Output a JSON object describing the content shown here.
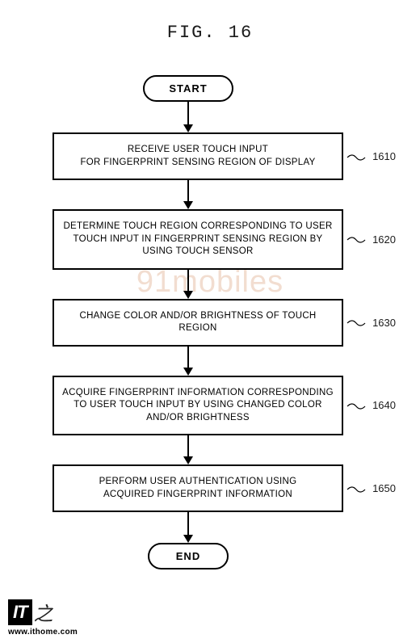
{
  "figure_label": "FIG. 16",
  "watermark_text": "91mobiles",
  "flowchart": {
    "type": "flowchart",
    "start_label": "START",
    "end_label": "END",
    "arrow_color": "#000000",
    "box_border_color": "#000000",
    "background_color": "#ffffff",
    "font_family": "Arial",
    "steps": [
      {
        "text": "RECEIVE USER TOUCH INPUT\nFOR FINGERPRINT SENSING REGION OF DISPLAY",
        "ref": "1610",
        "arrow_before_len": 28
      },
      {
        "text": "DETERMINE TOUCH REGION CORRESPONDING TO USER TOUCH INPUT IN FINGERPRINT SENSING REGION BY USING TOUCH SENSOR",
        "ref": "1620",
        "arrow_before_len": 26
      },
      {
        "text": "CHANGE COLOR AND/OR BRIGHTNESS OF TOUCH REGION",
        "ref": "1630",
        "arrow_before_len": 26
      },
      {
        "text": "ACQUIRE FINGERPRINT INFORMATION CORRESPONDING TO USER TOUCH INPUT BY USING CHANGED COLOR AND/OR BRIGHTNESS",
        "ref": "1640",
        "arrow_before_len": 26
      },
      {
        "text": "PERFORM USER AUTHENTICATION USING\nACQUIRED FINGERPRINT INFORMATION",
        "ref": "1650",
        "arrow_before_len": 26
      }
    ],
    "arrow_after_end_len": 28
  },
  "footer": {
    "logo_main": "IT",
    "logo_suffix": "之",
    "url": "www.ithome.com"
  },
  "colors": {
    "watermark": "#f0d8c8",
    "text": "#1a1a1a",
    "logo_bg": "#000000",
    "logo_fg": "#ffffff"
  }
}
